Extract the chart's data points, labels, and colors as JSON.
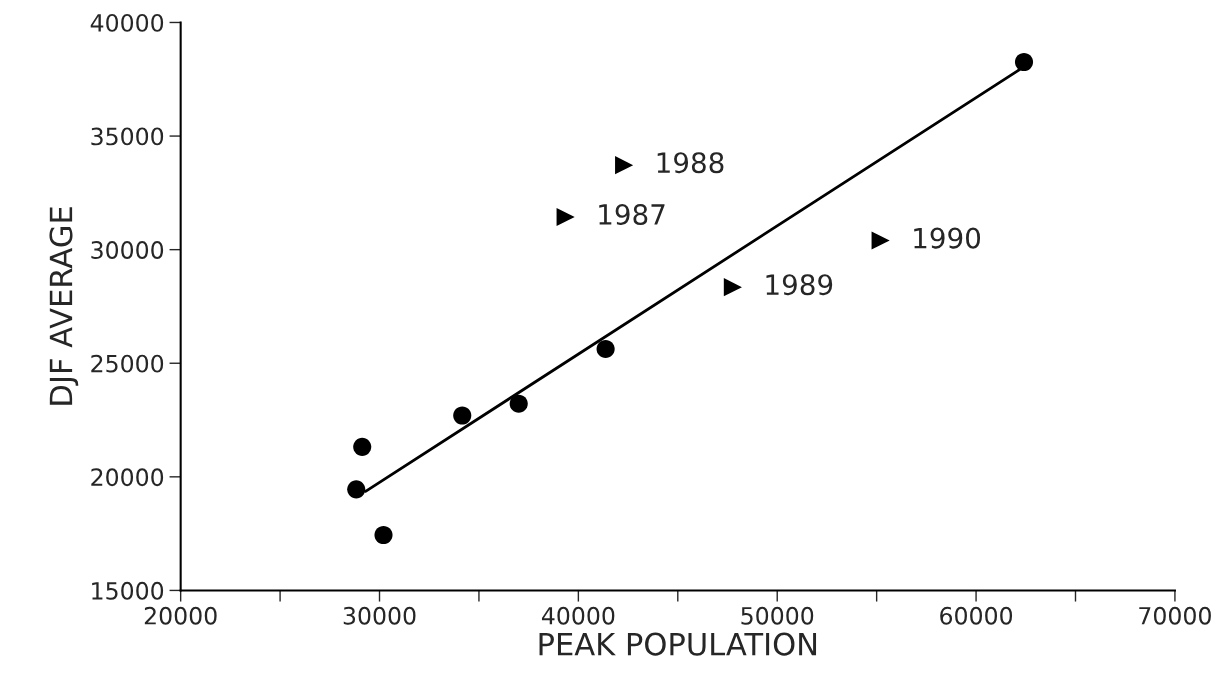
{
  "chart_data": {
    "type": "scatter",
    "xlabel": "PEAK POPULATION",
    "ylabel": "DJF AVERAGE",
    "xlim": [
      20000,
      70000
    ],
    "ylim": [
      15000,
      40000
    ],
    "xticks": [
      20000,
      {
        "value": 25000,
        "label": null
      },
      30000,
      {
        "value": 35000,
        "label": null
      },
      40000,
      {
        "value": 45000,
        "label": null
      },
      50000,
      {
        "value": 55000,
        "label": null
      },
      60000,
      {
        "value": 65000,
        "label": null
      },
      70000
    ],
    "yticks": [
      15000,
      20000,
      25000,
      30000,
      35000,
      40000
    ],
    "grid": false,
    "legend": false,
    "series": [
      {
        "marker": "circle",
        "color": "#000000",
        "x": [
          28830,
          29130,
          30200,
          34160,
          37000,
          41370,
          62410
        ],
        "values": [
          19450,
          21320,
          17440,
          22700,
          23220,
          25630,
          38260
        ]
      },
      {
        "marker": "triangle",
        "color": "#000000",
        "x": [
          39360,
          42300,
          47770,
          55200
        ],
        "values": [
          31440,
          33720,
          28350,
          30400
        ]
      },
      {
        "type": "line",
        "marker": "none",
        "line_style": "solid",
        "color": "#000000",
        "x": [
          29300,
          62190
        ],
        "values": [
          19360,
          37930
        ]
      }
    ],
    "annotations": [
      {
        "text": "1987",
        "x": 39360,
        "y": 31440
      },
      {
        "text": "1988",
        "x": 42300,
        "y": 33720
      },
      {
        "text": "1989",
        "x": 47770,
        "y": 28350
      },
      {
        "text": "1990",
        "x": 55200,
        "y": 30400
      }
    ]
  }
}
